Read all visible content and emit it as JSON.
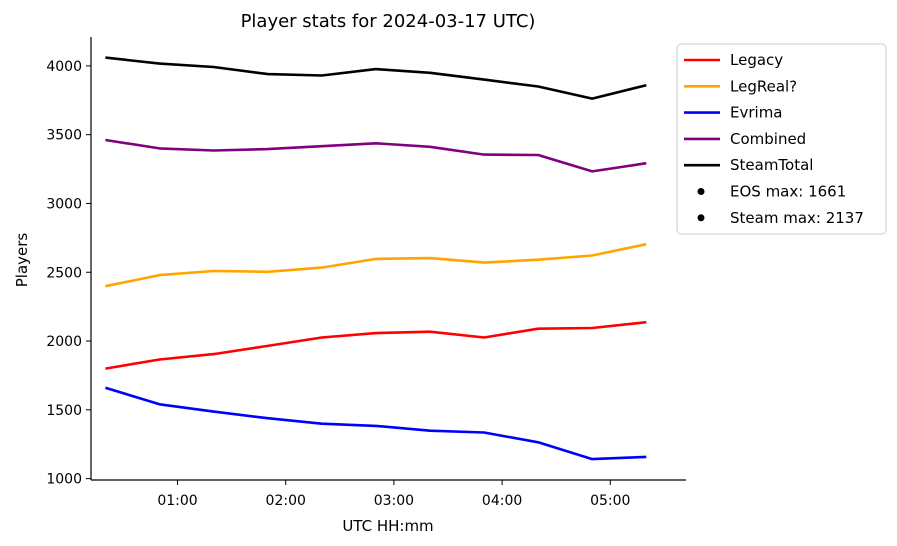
{
  "chart_data": {
    "type": "line",
    "title": "Player stats for 2024-03-17 UTC)",
    "xlabel": "UTC HH:mm",
    "ylabel": "Players",
    "x": [
      "00:20",
      "00:50",
      "01:20",
      "01:50",
      "02:20",
      "02:50",
      "03:20",
      "03:50",
      "04:20",
      "04:50",
      "05:20"
    ],
    "xlim": [
      "00:12",
      "05:42"
    ],
    "ylim": [
      990,
      4210
    ],
    "xticks": [
      "01:00",
      "02:00",
      "03:00",
      "04:00",
      "05:00"
    ],
    "yticks": [
      1000,
      1500,
      2000,
      2500,
      3000,
      3500,
      4000
    ],
    "grid": false,
    "legend_position": "outside-top-right",
    "series": [
      {
        "name": "Legacy",
        "color": "#ff0000",
        "values": [
          1800,
          1866,
          1905,
          1965,
          2026,
          2058,
          2068,
          2026,
          2090,
          2095,
          2137
        ]
      },
      {
        "name": "LegReal?",
        "color": "#ffa500",
        "values": [
          2399,
          2479,
          2509,
          2503,
          2534,
          2597,
          2603,
          2570,
          2591,
          2622,
          2704
        ]
      },
      {
        "name": "Evrima",
        "color": "#0000ff",
        "values": [
          1661,
          1540,
          1487,
          1439,
          1399,
          1383,
          1348,
          1335,
          1264,
          1142,
          1158
        ]
      },
      {
        "name": "Combined",
        "color": "#800080",
        "values": [
          3461,
          3400,
          3385,
          3395,
          3416,
          3437,
          3412,
          3355,
          3352,
          3233,
          3293
        ]
      },
      {
        "name": "SteamTotal",
        "color": "#000000",
        "values": [
          4060,
          4017,
          3992,
          3940,
          3930,
          3977,
          3950,
          3900,
          3850,
          3762,
          3860
        ]
      }
    ],
    "legend_notes": [
      {
        "label": "EOS max: 1661",
        "color": "#000000"
      },
      {
        "label": "Steam max: 2137",
        "color": "#000000"
      }
    ]
  }
}
